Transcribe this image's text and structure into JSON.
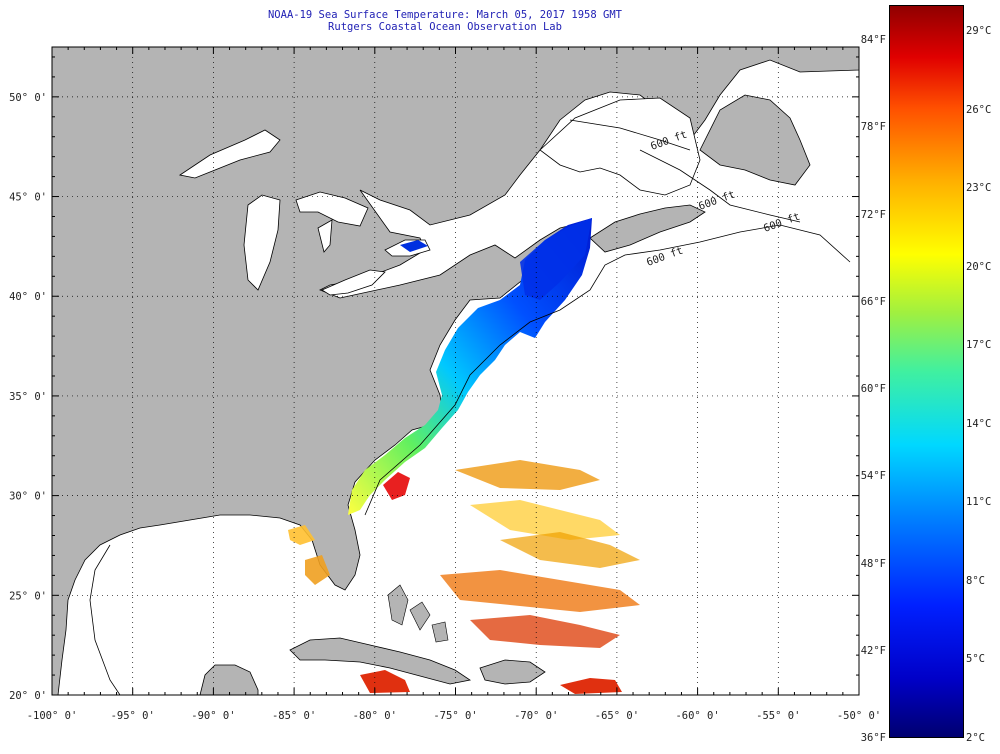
{
  "title": {
    "line1": "NOAA-19 Sea Surface Temperature:  March 05, 2017 1958 GMT",
    "line2": "Rutgers Coastal Ocean Observation Lab"
  },
  "map": {
    "lon_min": -100,
    "lon_max": -50,
    "lat_min": 20,
    "lat_max": 52.5,
    "lat_ticks": [
      "20° 0'",
      "25° 0'",
      "30° 0'",
      "35° 0'",
      "40° 0'",
      "45° 0'",
      "50° 0'"
    ],
    "lon_ticks": [
      "-100° 0'",
      "-95° 0'",
      "-90° 0'",
      "-85° 0'",
      "-80° 0'",
      "-75° 0'",
      "-70° 0'",
      "-65° 0'",
      "-60° 0'",
      "-55° 0'",
      "-50° 0'"
    ],
    "land_color": "#b4b4b4",
    "ocean_color": "#ffffff",
    "bathymetry_labels": [
      "600 ft",
      "600 ft",
      "600 ft",
      "600 ft"
    ]
  },
  "colorbar": {
    "fahrenheit_labels": [
      "84°F",
      "78°F",
      "72°F",
      "66°F",
      "60°F",
      "54°F",
      "48°F",
      "42°F",
      "36°F"
    ],
    "celsius_labels": [
      "29°C",
      "26°C",
      "23°C",
      "20°C",
      "17°C",
      "14°C",
      "11°C",
      "8°C",
      "5°C",
      "2°C"
    ],
    "min_color": "#000070",
    "max_color": "#900000"
  }
}
